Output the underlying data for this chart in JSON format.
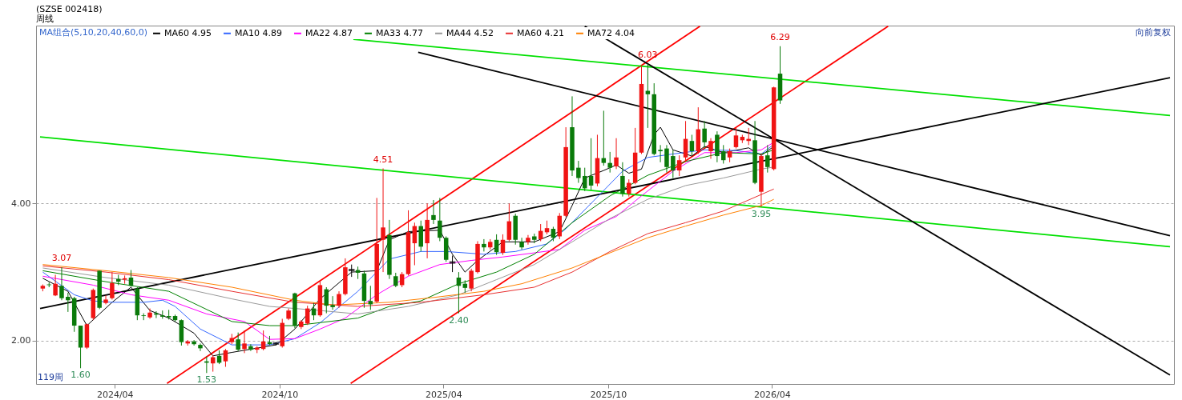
{
  "chart_data": {
    "type": "candlestick",
    "title": "(SZSE 002418)",
    "subtitle": "周线",
    "legend_title": "MA组合(5,10,20,40,60,0)",
    "legend": "top left",
    "grid": "y",
    "xlim": [
      "2024-01-09",
      "2027-06-17"
    ],
    "xticks": [
      {
        "value": "2024-04-01",
        "label": "2024/04"
      },
      {
        "value": "2024-10-01",
        "label": "2024/10"
      },
      {
        "value": "2025-04-01",
        "label": "2025/04"
      },
      {
        "value": "2025-10-01",
        "label": "2025/10"
      },
      {
        "value": "2026-04-01",
        "label": "2026/04"
      }
    ],
    "ylim": [
      1.37,
      6.59
    ],
    "yticks": [
      {
        "value": 2,
        "label": "2.00"
      },
      {
        "value": 4,
        "label": "4.00"
      }
    ],
    "annotations": [
      "向前复权",
      "119周",
      {
        "text": "3.07",
        "x": "2024-02-02",
        "y": 3.07
      },
      {
        "text": "1.60",
        "x": "2024-02-23",
        "y": 1.6
      },
      {
        "text": "1.53",
        "x": "2024-07-12",
        "y": 1.53
      },
      {
        "text": "4.51",
        "x": "2025-01-24",
        "y": 4.51
      },
      {
        "text": "2.40",
        "x": "2025-04-18",
        "y": 2.4
      },
      {
        "text": "6.03",
        "x": "2025-11-14",
        "y": 6.03
      },
      {
        "text": "3.95",
        "x": "2026-03-20",
        "y": 3.95
      },
      {
        "text": "6.29",
        "x": "2026-04-10",
        "y": 6.29
      }
    ],
    "x": [
      "2024-01-12",
      "2024-01-19",
      "2024-01-26",
      "2024-02-02",
      "2024-02-09",
      "2024-02-16",
      "2024-02-23",
      "2024-03-01",
      "2024-03-08",
      "2024-03-15",
      "2024-03-22",
      "2024-03-29",
      "2024-04-05",
      "2024-04-12",
      "2024-04-19",
      "2024-04-26",
      "2024-05-03",
      "2024-05-10",
      "2024-05-17",
      "2024-05-24",
      "2024-05-31",
      "2024-06-07",
      "2024-06-14",
      "2024-06-21",
      "2024-06-28",
      "2024-07-05",
      "2024-07-12",
      "2024-07-19",
      "2024-07-26",
      "2024-08-02",
      "2024-08-09",
      "2024-08-16",
      "2024-08-23",
      "2024-08-30",
      "2024-09-06",
      "2024-09-13",
      "2024-09-20",
      "2024-09-27",
      "2024-10-04",
      "2024-10-11",
      "2024-10-18",
      "2024-10-25",
      "2024-11-01",
      "2024-11-08",
      "2024-11-15",
      "2024-11-22",
      "2024-11-29",
      "2024-12-06",
      "2024-12-13",
      "2024-12-20",
      "2024-12-27",
      "2025-01-03",
      "2025-01-10",
      "2025-01-17",
      "2025-01-24",
      "2025-01-31",
      "2025-02-07",
      "2025-02-14",
      "2025-02-21",
      "2025-02-28",
      "2025-03-07",
      "2025-03-14",
      "2025-03-21",
      "2025-03-28",
      "2025-04-04",
      "2025-04-11",
      "2025-04-18",
      "2025-04-25",
      "2025-05-02",
      "2025-05-09",
      "2025-05-16",
      "2025-05-23",
      "2025-05-30",
      "2025-06-06",
      "2025-06-13",
      "2025-06-20",
      "2025-06-27",
      "2025-07-04",
      "2025-07-11",
      "2025-07-18",
      "2025-07-25",
      "2025-08-01",
      "2025-08-08",
      "2025-08-15",
      "2025-08-22",
      "2025-08-29",
      "2025-09-05",
      "2025-09-12",
      "2025-09-19",
      "2025-09-26",
      "2025-10-03",
      "2025-10-10",
      "2025-10-17",
      "2025-10-24",
      "2025-10-31",
      "2025-11-07",
      "2025-11-14",
      "2025-11-21",
      "2025-11-28",
      "2025-12-05",
      "2025-12-12",
      "2025-12-19",
      "2025-12-26",
      "2026-01-02",
      "2026-01-09",
      "2026-01-16",
      "2026-01-23",
      "2026-01-30",
      "2026-02-06",
      "2026-02-13",
      "2026-02-20",
      "2026-02-27",
      "2026-03-06",
      "2026-03-13",
      "2026-03-20",
      "2026-03-27",
      "2026-04-03",
      "2026-04-10"
    ],
    "ohlc": [
      [
        2.76,
        2.82,
        2.72,
        2.8
      ],
      [
        2.82,
        2.85,
        2.78,
        2.81
      ],
      [
        2.66,
        2.96,
        2.65,
        2.83
      ],
      [
        2.8,
        3.07,
        2.59,
        2.62
      ],
      [
        2.64,
        2.7,
        2.42,
        2.59
      ],
      [
        2.62,
        2.64,
        2.13,
        2.22
      ],
      [
        2.22,
        2.22,
        1.6,
        1.9
      ],
      [
        1.9,
        2.25,
        1.88,
        2.24
      ],
      [
        2.33,
        2.76,
        2.3,
        2.74
      ],
      [
        3.02,
        3.02,
        2.46,
        2.48
      ],
      [
        2.55,
        2.66,
        2.53,
        2.6
      ],
      [
        2.62,
        3.0,
        2.6,
        2.84
      ],
      [
        2.9,
        2.96,
        2.81,
        2.86
      ],
      [
        2.89,
        2.95,
        2.83,
        2.91
      ],
      [
        2.92,
        3.03,
        2.79,
        2.8
      ],
      [
        2.76,
        2.78,
        2.3,
        2.37
      ],
      [
        2.37,
        2.4,
        2.3,
        2.36
      ],
      [
        2.34,
        2.47,
        2.32,
        2.41
      ],
      [
        2.4,
        2.43,
        2.33,
        2.38
      ],
      [
        2.37,
        2.44,
        2.32,
        2.35
      ],
      [
        2.36,
        2.45,
        2.31,
        2.34
      ],
      [
        2.36,
        2.38,
        2.28,
        2.3
      ],
      [
        2.3,
        2.31,
        1.93,
        1.98
      ],
      [
        1.96,
        2.01,
        1.93,
        1.99
      ],
      [
        1.99,
        2.01,
        1.93,
        1.95
      ],
      [
        1.94,
        1.96,
        1.85,
        1.89
      ],
      [
        1.7,
        1.77,
        1.53,
        1.68
      ],
      [
        1.67,
        1.79,
        1.55,
        1.76
      ],
      [
        1.78,
        1.86,
        1.66,
        1.68
      ],
      [
        1.7,
        1.88,
        1.62,
        1.86
      ],
      [
        1.98,
        2.1,
        1.95,
        2.04
      ],
      [
        2.02,
        2.12,
        1.85,
        1.87
      ],
      [
        1.88,
        2.15,
        1.82,
        1.96
      ],
      [
        1.92,
        1.95,
        1.85,
        1.87
      ],
      [
        1.87,
        1.92,
        1.82,
        1.9
      ],
      [
        1.88,
        2.15,
        1.86,
        1.99
      ],
      [
        1.98,
        2.07,
        1.94,
        1.95
      ],
      [
        1.96,
        1.98,
        1.93,
        1.96
      ],
      [
        1.92,
        2.32,
        1.9,
        2.26
      ],
      [
        2.32,
        2.47,
        2.3,
        2.44
      ],
      [
        2.69,
        2.7,
        2.18,
        2.22
      ],
      [
        2.2,
        2.3,
        2.17,
        2.28
      ],
      [
        2.25,
        2.51,
        2.23,
        2.47
      ],
      [
        2.47,
        2.55,
        2.3,
        2.37
      ],
      [
        2.37,
        2.88,
        2.35,
        2.81
      ],
      [
        2.75,
        2.78,
        2.4,
        2.51
      ],
      [
        2.52,
        2.65,
        2.45,
        2.49
      ],
      [
        2.51,
        2.72,
        2.48,
        2.68
      ],
      [
        2.68,
        3.2,
        2.66,
        3.07
      ],
      [
        3.03,
        3.11,
        2.93,
        3.03
      ],
      [
        3.03,
        3.08,
        2.9,
        2.99
      ],
      [
        2.98,
        3.02,
        2.48,
        2.58
      ],
      [
        2.58,
        2.8,
        2.45,
        2.53
      ],
      [
        2.57,
        4.08,
        2.55,
        3.41
      ],
      [
        3.47,
        4.51,
        3.0,
        3.65
      ],
      [
        3.54,
        3.76,
        2.9,
        2.96
      ],
      [
        2.94,
        2.99,
        2.78,
        2.8
      ],
      [
        2.81,
        3.0,
        2.78,
        2.97
      ],
      [
        2.97,
        3.9,
        2.95,
        3.58
      ],
      [
        3.42,
        3.72,
        3.1,
        3.67
      ],
      [
        3.67,
        3.75,
        3.3,
        3.37
      ],
      [
        3.42,
        4.0,
        3.2,
        3.76
      ],
      [
        3.83,
        4.05,
        3.7,
        3.76
      ],
      [
        3.75,
        4.08,
        3.45,
        3.5
      ],
      [
        3.5,
        3.52,
        3.15,
        3.18
      ],
      [
        3.14,
        3.24,
        3.0,
        3.14
      ],
      [
        2.92,
        3.0,
        2.4,
        2.8
      ],
      [
        2.83,
        2.88,
        2.7,
        2.77
      ],
      [
        2.76,
        3.05,
        2.72,
        3.02
      ],
      [
        3.0,
        3.45,
        2.98,
        3.41
      ],
      [
        3.41,
        3.48,
        3.3,
        3.36
      ],
      [
        3.36,
        3.48,
        3.33,
        3.44
      ],
      [
        3.47,
        3.55,
        3.25,
        3.29
      ],
      [
        3.28,
        3.55,
        3.25,
        3.47
      ],
      [
        3.47,
        4.0,
        3.45,
        3.74
      ],
      [
        3.82,
        3.85,
        3.4,
        3.47
      ],
      [
        3.44,
        3.5,
        3.33,
        3.36
      ],
      [
        3.44,
        3.54,
        3.4,
        3.5
      ],
      [
        3.52,
        3.56,
        3.42,
        3.47
      ],
      [
        3.48,
        3.7,
        3.45,
        3.6
      ],
      [
        3.58,
        3.75,
        3.55,
        3.64
      ],
      [
        3.63,
        3.66,
        3.45,
        3.5
      ],
      [
        3.52,
        3.86,
        3.48,
        3.82
      ],
      [
        3.82,
        5.11,
        3.8,
        4.82
      ],
      [
        5.11,
        5.56,
        4.4,
        4.48
      ],
      [
        4.52,
        4.62,
        4.3,
        4.37
      ],
      [
        4.4,
        4.52,
        4.18,
        4.22
      ],
      [
        4.4,
        4.95,
        4.2,
        4.26
      ],
      [
        4.29,
        5.0,
        4.25,
        4.66
      ],
      [
        4.66,
        5.35,
        4.55,
        4.59
      ],
      [
        4.59,
        4.75,
        4.45,
        4.52
      ],
      [
        4.54,
        4.95,
        4.5,
        4.67
      ],
      [
        4.4,
        4.6,
        4.1,
        4.14
      ],
      [
        4.14,
        4.35,
        4.1,
        4.3
      ],
      [
        4.3,
        5.1,
        4.28,
        4.74
      ],
      [
        4.74,
        6.0,
        4.72,
        5.74
      ],
      [
        5.64,
        6.03,
        5.1,
        5.59
      ],
      [
        5.59,
        5.75,
        4.7,
        4.72
      ],
      [
        4.78,
        4.85,
        4.6,
        4.76
      ],
      [
        4.8,
        4.85,
        4.45,
        4.53
      ],
      [
        4.69,
        4.78,
        4.37,
        4.48
      ],
      [
        4.48,
        4.7,
        4.4,
        4.63
      ],
      [
        4.67,
        5.2,
        4.6,
        4.94
      ],
      [
        4.91,
        5.0,
        4.7,
        4.76
      ],
      [
        4.76,
        5.4,
        4.72,
        5.08
      ],
      [
        5.09,
        5.2,
        4.8,
        4.89
      ],
      [
        4.76,
        4.95,
        4.65,
        4.91
      ],
      [
        5.0,
        5.05,
        4.6,
        4.69
      ],
      [
        4.76,
        4.85,
        4.58,
        4.63
      ],
      [
        4.67,
        4.8,
        4.6,
        4.76
      ],
      [
        4.82,
        5.1,
        4.8,
        4.99
      ],
      [
        4.92,
        5.0,
        4.88,
        4.97
      ],
      [
        4.91,
        5.1,
        4.85,
        4.94
      ],
      [
        4.92,
        5.2,
        4.28,
        4.3
      ],
      [
        4.17,
        4.72,
        3.95,
        4.69
      ],
      [
        4.7,
        4.85,
        4.45,
        4.53
      ],
      [
        4.5,
        5.7,
        4.48,
        5.69
      ],
      [
        5.89,
        6.29,
        5.45,
        5.5
      ]
    ],
    "colors": [
      "#f01414",
      "#0a7a0a",
      "#f01414",
      "#0a7a0a",
      "#0a7a0a",
      "#0a7a0a",
      "#0a7a0a",
      "#f01414",
      "#f01414",
      "#0a7a0a",
      "#f01414",
      "#f01414",
      "#0a7a0a",
      "#f01414",
      "#0a7a0a",
      "#0a7a0a",
      "#0a7a0a",
      "#f01414",
      "#0a7a0a",
      "#0a7a0a",
      "#0a7a0a",
      "#0a7a0a",
      "#0a7a0a",
      "#f01414",
      "#0a7a0a",
      "#0a7a0a",
      "#0a7a0a",
      "#f01414",
      "#0a7a0a",
      "#f01414",
      "#f01414",
      "#0a7a0a",
      "#f01414",
      "#0a7a0a",
      "#f01414",
      "#f01414",
      "#0a7a0a",
      "#000000",
      "#f01414",
      "#f01414",
      "#0a7a0a",
      "#f01414",
      "#f01414",
      "#0a7a0a",
      "#f01414",
      "#0a7a0a",
      "#0a7a0a",
      "#f01414",
      "#f01414",
      "#000000",
      "#0a7a0a",
      "#0a7a0a",
      "#0a7a0a",
      "#f01414",
      "#f01414",
      "#0a7a0a",
      "#0a7a0a",
      "#f01414",
      "#f01414",
      "#f01414",
      "#0a7a0a",
      "#f01414",
      "#0a7a0a",
      "#0a7a0a",
      "#0a7a0a",
      "#000000",
      "#0a7a0a",
      "#0a7a0a",
      "#f01414",
      "#f01414",
      "#0a7a0a",
      "#f01414",
      "#0a7a0a",
      "#f01414",
      "#f01414",
      "#0a7a0a",
      "#0a7a0a",
      "#f01414",
      "#0a7a0a",
      "#f01414",
      "#f01414",
      "#0a7a0a",
      "#f01414",
      "#f01414",
      "#0a7a0a",
      "#0a7a0a",
      "#0a7a0a",
      "#0a7a0a",
      "#f01414",
      "#0a7a0a",
      "#0a7a0a",
      "#f01414",
      "#0a7a0a",
      "#f01414",
      "#f01414",
      "#f01414",
      "#0a7a0a",
      "#0a7a0a",
      "#0a7a0a",
      "#0a7a0a",
      "#0a7a0a",
      "#f01414",
      "#f01414",
      "#0a7a0a",
      "#f01414",
      "#0a7a0a",
      "#f01414",
      "#0a7a0a",
      "#0a7a0a",
      "#f01414",
      "#f01414",
      "#f01414",
      "#f01414",
      "#0a7a0a",
      "#f01414",
      "#0a7a0a",
      "#f01414",
      "#0a7a0a"
    ],
    "series": [
      {
        "name": "MA60 4.95",
        "color": "#000000",
        "type": "line",
        "x": [
          "2024-01-12",
          "2024-02-09",
          "2024-03-01",
          "2024-03-15",
          "2024-03-29",
          "2024-04-19",
          "2024-05-10",
          "2024-05-31",
          "2024-06-28",
          "2024-07-19",
          "2024-08-09",
          "2024-09-27",
          "2024-10-18",
          "2024-11-15",
          "2024-12-20",
          "2025-01-17",
          "2025-01-31",
          "2025-02-21",
          "2025-03-28",
          "2025-04-11",
          "2025-04-25",
          "2025-05-09",
          "2025-06-06",
          "2025-07-11",
          "2025-08-08",
          "2025-08-22",
          "2025-09-05",
          "2025-09-26",
          "2025-10-10",
          "2025-10-24",
          "2025-11-07",
          "2025-11-21",
          "2025-11-28",
          "2025-12-12",
          "2026-01-02",
          "2026-01-16",
          "2026-02-06",
          "2026-03-06",
          "2026-03-20",
          "2026-04-03"
        ],
        "values": [
          2.91,
          2.72,
          2.22,
          2.39,
          2.56,
          2.78,
          2.44,
          2.33,
          2.11,
          1.78,
          1.83,
          1.94,
          2.17,
          2.61,
          3.0,
          3.02,
          3.47,
          3.59,
          3.61,
          3.26,
          3.0,
          3.17,
          3.44,
          3.44,
          3.59,
          3.97,
          4.37,
          4.48,
          4.56,
          4.44,
          4.5,
          5.0,
          5.11,
          4.78,
          4.69,
          4.83,
          4.74,
          4.81,
          4.7,
          4.83
        ]
      },
      {
        "name": "MA10 4.89",
        "color": "#3366ff",
        "type": "line",
        "x": [
          "2024-01-12",
          "2024-02-16",
          "2024-03-08",
          "2024-03-29",
          "2024-05-03",
          "2024-05-24",
          "2024-06-07",
          "2024-07-05",
          "2024-08-09",
          "2024-09-20",
          "2024-10-18",
          "2024-11-15",
          "2024-12-27",
          "2025-01-31",
          "2025-03-07",
          "2025-04-04",
          "2025-05-16",
          "2025-06-20",
          "2025-07-25",
          "2025-08-15",
          "2025-09-12",
          "2025-10-17",
          "2025-11-14",
          "2025-12-12",
          "2026-01-16",
          "2026-02-20",
          "2026-03-20",
          "2026-04-03"
        ],
        "values": [
          3.0,
          2.67,
          2.58,
          2.56,
          2.56,
          2.59,
          2.5,
          2.17,
          1.94,
          1.94,
          2.03,
          2.26,
          2.72,
          3.19,
          3.3,
          3.3,
          3.26,
          3.3,
          3.41,
          3.63,
          4.0,
          4.47,
          4.67,
          4.72,
          4.78,
          4.77,
          4.72,
          4.86
        ]
      },
      {
        "name": "MA22 4.87",
        "color": "#ff00ff",
        "type": "line",
        "x": [
          "2024-01-12",
          "2024-03-08",
          "2024-04-19",
          "2024-05-31",
          "2024-07-12",
          "2024-08-23",
          "2024-09-20",
          "2024-10-18",
          "2024-11-15",
          "2024-12-13",
          "2025-01-17",
          "2025-02-21",
          "2025-03-28",
          "2025-05-02",
          "2025-06-06",
          "2025-07-11",
          "2025-08-08",
          "2025-09-05",
          "2025-10-10",
          "2025-11-07",
          "2025-12-12",
          "2026-01-16",
          "2026-02-20",
          "2026-03-20",
          "2026-04-03"
        ],
        "values": [
          2.94,
          2.81,
          2.67,
          2.59,
          2.39,
          2.28,
          2.02,
          2.03,
          2.17,
          2.33,
          2.67,
          2.94,
          3.11,
          3.17,
          3.22,
          3.28,
          3.33,
          3.61,
          3.81,
          4.11,
          4.47,
          4.74,
          4.74,
          4.78,
          4.89
        ]
      },
      {
        "name": "MA33 4.77",
        "color": "#008000",
        "type": "line",
        "x": [
          "2024-01-12",
          "2024-03-22",
          "2024-05-31",
          "2024-08-09",
          "2024-09-20",
          "2024-10-18",
          "2024-12-27",
          "2025-01-31",
          "2025-03-07",
          "2025-04-18",
          "2025-05-30",
          "2025-07-11",
          "2025-08-22",
          "2025-10-03",
          "2025-11-14",
          "2025-12-26",
          "2026-02-06",
          "2026-03-20",
          "2026-04-03"
        ],
        "values": [
          3.02,
          2.86,
          2.72,
          2.28,
          2.22,
          2.22,
          2.33,
          2.5,
          2.58,
          2.83,
          3.0,
          3.26,
          3.72,
          4.11,
          4.41,
          4.61,
          4.74,
          4.72,
          4.78
        ]
      },
      {
        "name": "MA44 4.52",
        "color": "#999999",
        "type": "line",
        "x": [
          "2024-01-12",
          "2024-03-22",
          "2024-05-31",
          "2024-08-09",
          "2024-09-20",
          "2024-11-15",
          "2024-12-27",
          "2025-02-21",
          "2025-04-18",
          "2025-05-30",
          "2025-07-11",
          "2025-08-22",
          "2025-10-03",
          "2025-11-14",
          "2025-12-26",
          "2026-02-06",
          "2026-03-20",
          "2026-04-03"
        ],
        "values": [
          3.06,
          2.92,
          2.81,
          2.61,
          2.5,
          2.44,
          2.39,
          2.5,
          2.67,
          2.89,
          3.11,
          3.44,
          3.78,
          4.06,
          4.26,
          4.37,
          4.5,
          4.53
        ]
      },
      {
        "name": "MA60 4.21",
        "color": "#e83030",
        "type": "line",
        "x": [
          "2024-01-12",
          "2024-03-22",
          "2024-05-31",
          "2024-08-09",
          "2024-10-18",
          "2024-12-27",
          "2025-03-07",
          "2025-05-16",
          "2025-07-11",
          "2025-08-22",
          "2025-10-03",
          "2025-11-14",
          "2025-12-26",
          "2026-02-06",
          "2026-03-20",
          "2026-04-03"
        ],
        "values": [
          3.09,
          3.0,
          2.89,
          2.72,
          2.56,
          2.5,
          2.56,
          2.67,
          2.78,
          3.0,
          3.3,
          3.56,
          3.72,
          3.89,
          4.13,
          4.21
        ]
      },
      {
        "name": "MA72 4.04",
        "color": "#ff8000",
        "type": "line",
        "x": [
          "2024-01-12",
          "2024-03-22",
          "2024-05-31",
          "2024-08-09",
          "2024-10-18",
          "2024-11-29",
          "2025-01-31",
          "2025-03-21",
          "2025-05-16",
          "2025-06-27",
          "2025-08-22",
          "2025-10-03",
          "2025-11-14",
          "2025-12-26",
          "2026-02-06",
          "2026-03-20",
          "2026-04-03"
        ],
        "values": [
          3.11,
          3.02,
          2.92,
          2.78,
          2.59,
          2.52,
          2.56,
          2.63,
          2.72,
          2.83,
          3.06,
          3.28,
          3.5,
          3.67,
          3.83,
          3.97,
          4.06
        ]
      },
      {
        "color": "#ff0000",
        "type": "line",
        "x": [
          "2024-05-29",
          "2026-01-11"
        ],
        "values": [
          1.38,
          6.58
        ]
      },
      {
        "color": "#ff0000",
        "type": "line",
        "x": [
          "2024-12-19",
          "2026-08-08"
        ],
        "values": [
          1.38,
          6.58
        ]
      },
      {
        "color": "#00e000",
        "type": "line",
        "x": [
          "2024-12-22",
          "2027-06-17"
        ],
        "values": [
          6.39,
          5.28
        ]
      },
      {
        "color": "#00e000",
        "type": "line",
        "x": [
          "2024-01-09",
          "2027-06-17"
        ],
        "values": [
          4.97,
          3.37
        ]
      },
      {
        "color": "#000000",
        "type": "line",
        "x": [
          "2024-01-09",
          "2027-06-17"
        ],
        "values": [
          2.47,
          5.83
        ]
      },
      {
        "color": "#000000",
        "type": "line",
        "x": [
          "2025-09-05",
          "2027-06-17"
        ],
        "values": [
          6.58,
          1.5
        ]
      },
      {
        "color": "#000000",
        "type": "line",
        "x": [
          "2025-03-04",
          "2027-06-17"
        ],
        "values": [
          6.2,
          3.53
        ]
      }
    ]
  }
}
